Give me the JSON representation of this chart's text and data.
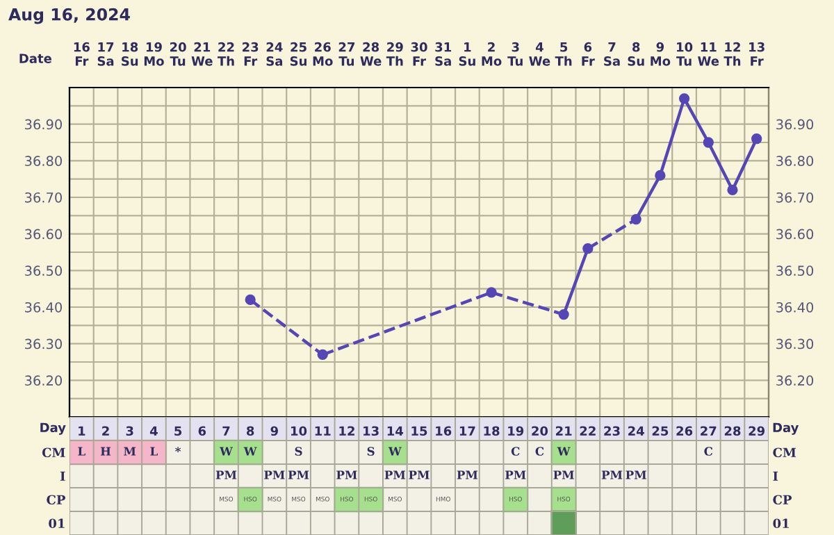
{
  "chart_data": [
    {
      "type": "line",
      "title": "Aug 16, 2024",
      "xlabel": "Date",
      "categories": [
        "16\nFr",
        "17\nSa",
        "18\nSu",
        "19\nMo",
        "20\nTu",
        "21\nWe",
        "22\nTh",
        "23\nFr",
        "24\nSa",
        "25\nSu",
        "26\nMo",
        "27\nTu",
        "28\nWe",
        "29\nTh",
        "30\nFr",
        "31\nSa",
        "1\nSu",
        "2\nMo",
        "3\nTu",
        "4\nWe",
        "5\nTh",
        "6\nFr",
        "7\nSa",
        "8\nSu",
        "9\nMo",
        "10\nTu",
        "11\nWe",
        "12\nTh",
        "13\nFr"
      ],
      "series": [
        {
          "color": "#5646b4",
          "values": [
            null,
            null,
            null,
            null,
            null,
            null,
            null,
            36.42,
            null,
            null,
            36.27,
            null,
            null,
            null,
            null,
            null,
            null,
            36.44,
            null,
            null,
            36.38,
            36.56,
            null,
            36.64,
            36.76,
            36.97,
            36.85,
            36.72,
            36.86
          ]
        }
      ],
      "ylim": [
        36.1,
        37.0
      ],
      "yticks": [
        {
          "value": 36.15,
          "label": null
        },
        {
          "value": 36.2,
          "label": "36.20"
        },
        {
          "value": 36.25,
          "label": null
        },
        {
          "value": 36.3,
          "label": "36.30"
        },
        {
          "value": 36.35,
          "label": null
        },
        {
          "value": 36.4,
          "label": "36.40"
        },
        {
          "value": 36.45,
          "label": null
        },
        {
          "value": 36.5,
          "label": "36.50"
        },
        {
          "value": 36.55,
          "label": null
        },
        {
          "value": 36.6,
          "label": "36.60"
        },
        {
          "value": 36.65,
          "label": null
        },
        {
          "value": 36.7,
          "label": "36.70"
        },
        {
          "value": 36.75,
          "label": null
        },
        {
          "value": 36.8,
          "label": "36.80"
        },
        {
          "value": 36.85,
          "label": null
        },
        {
          "value": 36.9,
          "label": "36.90"
        },
        {
          "value": 36.95,
          "label": null
        }
      ],
      "y2lim": [
        36.1,
        37.0
      ],
      "y2ticks": [
        {
          "value": 36.15,
          "label": null
        },
        {
          "value": 36.2,
          "label": "36.20"
        },
        {
          "value": 36.25,
          "label": null
        },
        {
          "value": 36.3,
          "label": "36.30"
        },
        {
          "value": 36.35,
          "label": null
        },
        {
          "value": 36.4,
          "label": "36.40"
        },
        {
          "value": 36.45,
          "label": null
        },
        {
          "value": 36.5,
          "label": "36.50"
        },
        {
          "value": 36.55,
          "label": null
        },
        {
          "value": 36.6,
          "label": "36.60"
        },
        {
          "value": 36.65,
          "label": null
        },
        {
          "value": 36.7,
          "label": "36.70"
        },
        {
          "value": 36.75,
          "label": null
        },
        {
          "value": 36.8,
          "label": "36.80"
        },
        {
          "value": 36.85,
          "label": null
        },
        {
          "value": 36.9,
          "label": "36.90"
        },
        {
          "value": 36.95,
          "label": null
        }
      ],
      "grid": true,
      "marker": "circle",
      "line_style": "solid",
      "legend": false
    },
    {
      "type": "heatmap",
      "xlabel": "Day",
      "cells": [
        [
          null,
          null,
          null,
          null,
          null,
          null,
          null,
          null,
          null,
          null,
          null,
          null,
          null,
          null,
          null,
          null,
          null,
          null,
          null,
          null,
          null,
          null,
          null,
          null,
          null,
          null,
          null,
          null,
          null
        ],
        [
          null,
          null,
          null,
          null,
          null,
          null,
          null,
          null,
          null,
          null,
          null,
          null,
          null,
          null,
          null,
          null,
          null,
          null,
          null,
          null,
          null,
          null,
          null,
          null,
          null,
          null,
          null,
          null,
          null
        ],
        [
          null,
          null,
          null,
          null,
          null,
          null,
          null,
          null,
          null,
          null,
          null,
          null,
          null,
          null,
          null,
          null,
          null,
          null,
          null,
          null,
          null,
          null,
          null,
          null,
          null,
          null,
          null,
          null,
          null
        ],
        [
          null,
          null,
          null,
          null,
          null,
          null,
          null,
          null,
          null,
          null,
          null,
          null,
          null,
          null,
          null,
          null,
          null,
          null,
          null,
          null,
          null,
          null,
          null,
          null,
          null,
          null,
          null,
          null,
          null
        ]
      ],
      "categories": [
        "1",
        "2",
        "3",
        "4",
        "5",
        "6",
        "7",
        "8",
        "9",
        "10",
        "11",
        "12",
        "13",
        "14",
        "15",
        "16",
        "17",
        "18",
        "19",
        "20",
        "21",
        "22",
        "23",
        "24",
        "25",
        "26",
        "27",
        "28",
        "29"
      ],
      "y_categories": [
        "CM",
        "I",
        "CP",
        "01"
      ],
      "y2_categories": [
        "CM",
        "I",
        "CP",
        "01"
      ],
      "cell_labels": [
        [
          "L",
          "H",
          "M",
          "L",
          "*",
          null,
          "W",
          "W",
          null,
          "S",
          null,
          null,
          "S",
          "W",
          null,
          null,
          null,
          null,
          "C",
          "C",
          "W",
          null,
          null,
          null,
          null,
          null,
          "C",
          null,
          null
        ],
        [
          null,
          null,
          null,
          null,
          null,
          null,
          "PM",
          null,
          "PM",
          "PM",
          null,
          "PM",
          null,
          "PM",
          "PM",
          null,
          "PM",
          null,
          "PM",
          null,
          "PM",
          null,
          "PM",
          "PM",
          null,
          null,
          null,
          null,
          null
        ],
        [
          null,
          null,
          null,
          null,
          null,
          null,
          "MSO",
          "HSO",
          "MSO",
          "MSO",
          "MSO",
          "HSO",
          "HSO",
          "MSO",
          null,
          "HMO",
          null,
          null,
          "HSO",
          null,
          "HSO",
          null,
          null,
          null,
          null,
          null,
          null,
          null,
          null
        ],
        [
          null,
          null,
          null,
          null,
          null,
          null,
          null,
          null,
          null,
          null,
          null,
          null,
          null,
          null,
          null,
          null,
          null,
          null,
          null,
          null,
          null,
          null,
          null,
          null,
          null,
          null,
          null,
          null,
          null
        ]
      ],
      "colors": [
        [
          "#f4b6c8",
          "#f4b6c8",
          "#f4b6c8",
          "#f4b6c8",
          null,
          null,
          "#a6e08e",
          "#a6e08e",
          null,
          null,
          null,
          null,
          null,
          "#a6e08e",
          null,
          null,
          null,
          null,
          null,
          null,
          "#a6e08e",
          null,
          null,
          null,
          null,
          null,
          null,
          null,
          null
        ],
        [
          null,
          null,
          null,
          null,
          null,
          null,
          null,
          null,
          null,
          null,
          null,
          null,
          null,
          null,
          null,
          null,
          null,
          null,
          null,
          null,
          null,
          null,
          null,
          null,
          null,
          null,
          null,
          null,
          null
        ],
        [
          null,
          null,
          null,
          null,
          null,
          null,
          null,
          "#a6e08e",
          null,
          null,
          null,
          "#a6e08e",
          "#a6e08e",
          null,
          null,
          null,
          null,
          null,
          "#a6e08e",
          null,
          "#a6e08e",
          null,
          null,
          null,
          null,
          null,
          null,
          null,
          null
        ],
        [
          null,
          null,
          null,
          null,
          null,
          null,
          null,
          null,
          null,
          null,
          null,
          null,
          null,
          null,
          null,
          null,
          null,
          null,
          null,
          null,
          "#5e9e5a",
          null,
          null,
          null,
          null,
          null,
          null,
          null,
          null
        ]
      ]
    }
  ]
}
